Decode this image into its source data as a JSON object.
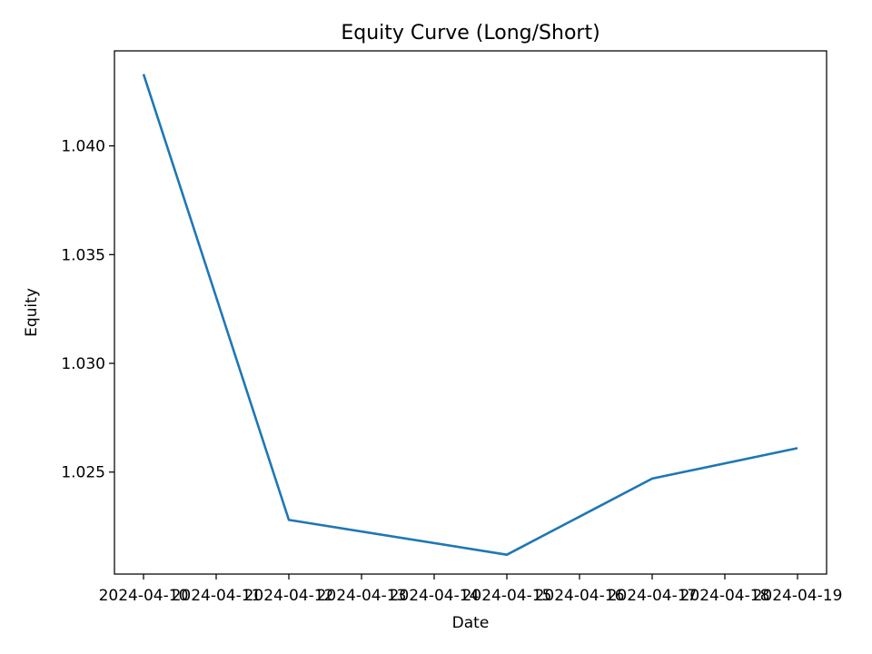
{
  "chart_data": {
    "type": "line",
    "title": "Equity Curve (Long/Short)",
    "xlabel": "Date",
    "ylabel": "Equity",
    "x_ticks": [
      "2024-04-10",
      "2024-04-11",
      "2024-04-12",
      "2024-04-13",
      "2024-04-14",
      "2024-04-15",
      "2024-04-16",
      "2024-04-17",
      "2024-04-18",
      "2024-04-19"
    ],
    "y_ticks": [
      "1.025",
      "1.030",
      "1.035",
      "1.040"
    ],
    "ylim": [
      1.02031,
      1.04437
    ],
    "xlim": [
      "2024-04-09T14:24",
      "2024-04-19T09:36"
    ],
    "grid": false,
    "series": [
      {
        "color": "#1f77b4",
        "x": [
          "2024-04-10",
          "2024-04-12",
          "2024-04-15",
          "2024-04-17",
          "2024-04-19"
        ],
        "y": [
          1.0433,
          1.0228,
          1.0212,
          1.0247,
          1.0261
        ]
      }
    ]
  }
}
